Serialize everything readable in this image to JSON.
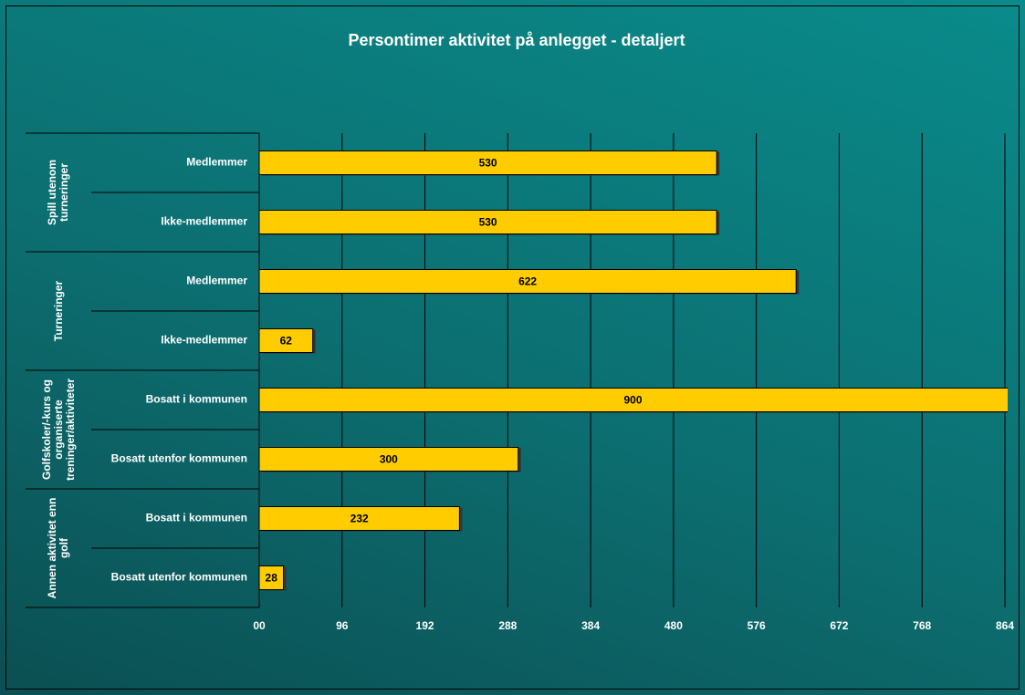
{
  "chart_data": {
    "type": "bar",
    "title": "Persontimer aktivitet på anlegget - detaljert",
    "groups": [
      {
        "name": "Spill utenom turneringer",
        "categories": [
          "Medlemmer",
          "Ikke-medlemmer"
        ],
        "values": [
          530,
          530
        ]
      },
      {
        "name": "Turneringer",
        "categories": [
          "Medlemmer",
          "Ikke-medlemmer"
        ],
        "values": [
          622,
          62
        ]
      },
      {
        "name": "Golfskoler/-kurs og organiserte treninger/aktiviteter",
        "categories": [
          "Bosatt i kommunen",
          "Bosatt utenfor kommunen"
        ],
        "values": [
          900,
          300
        ]
      },
      {
        "name": "Annen aktivitet enn golf",
        "categories": [
          "Bosatt i kommunen",
          "Bosatt utenfor kommunen"
        ],
        "values": [
          232,
          28
        ]
      }
    ],
    "color": "#ffcc00",
    "xlim": [
      0,
      864
    ],
    "xticks": [
      {
        "value": 0,
        "label": "00"
      },
      96,
      192,
      288,
      384,
      480,
      576,
      672,
      768,
      864
    ],
    "grid": true
  }
}
